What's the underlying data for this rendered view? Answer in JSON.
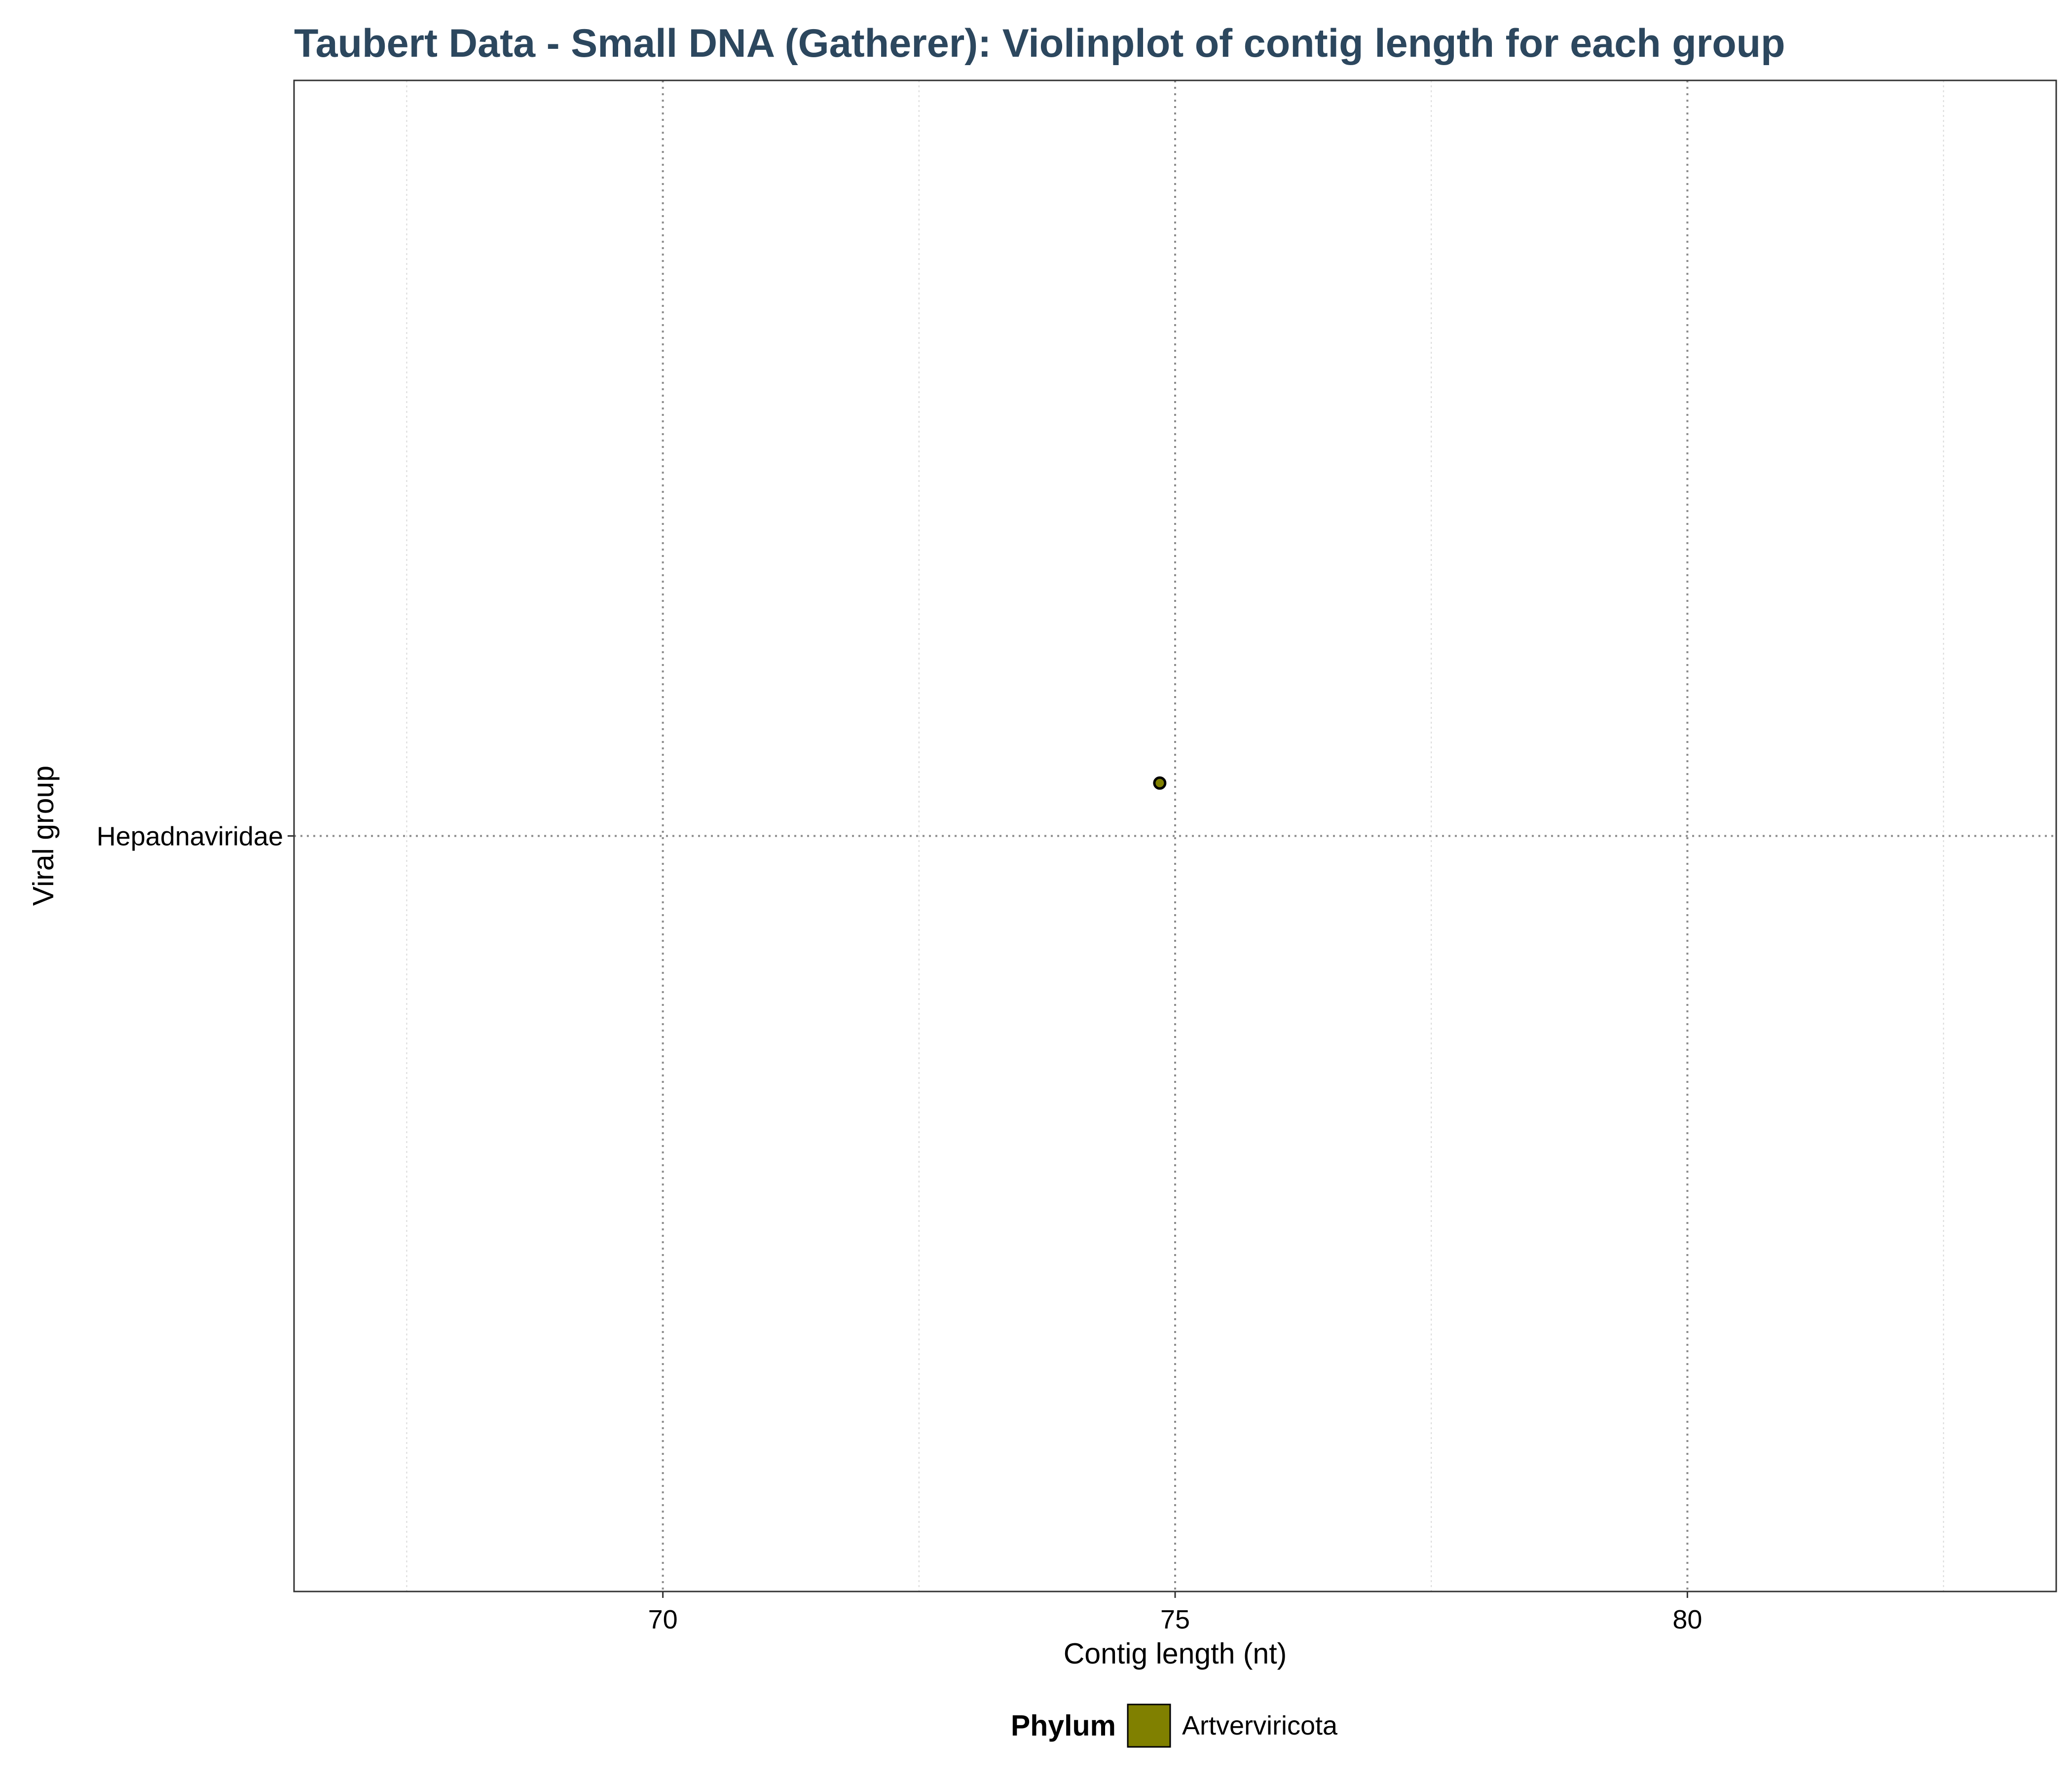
{
  "chart_data": {
    "type": "violin",
    "title": "Taubert Data - Small DNA (Gatherer): Violinplot of contig length for each group",
    "xlabel": "Contig length (nt)",
    "ylabel": "Viral group",
    "xlim": [
      66.4,
      83.6
    ],
    "x_ticks": [
      70,
      75,
      80
    ],
    "x_tick_labels": [
      "70",
      "75",
      "80"
    ],
    "x_minor_ticks": [
      67.5,
      72.5,
      77.5,
      82.5
    ],
    "categories": [
      "Hepadnaviridae"
    ],
    "points": [
      {
        "group": "Hepadnaviridae",
        "phylum": "Artverviricota",
        "x": 74.85,
        "jitter": 0.035
      }
    ],
    "grid": true,
    "legend": {
      "position": "bottom",
      "title": "Phylum",
      "entries": [
        {
          "label": "Artverviricota",
          "color": "#808000"
        }
      ]
    },
    "colors": {
      "title": "#2c475e",
      "major_grid": "#8c8c8c",
      "minor_grid": "#d9d9d9",
      "panel_border": "#333333"
    }
  }
}
